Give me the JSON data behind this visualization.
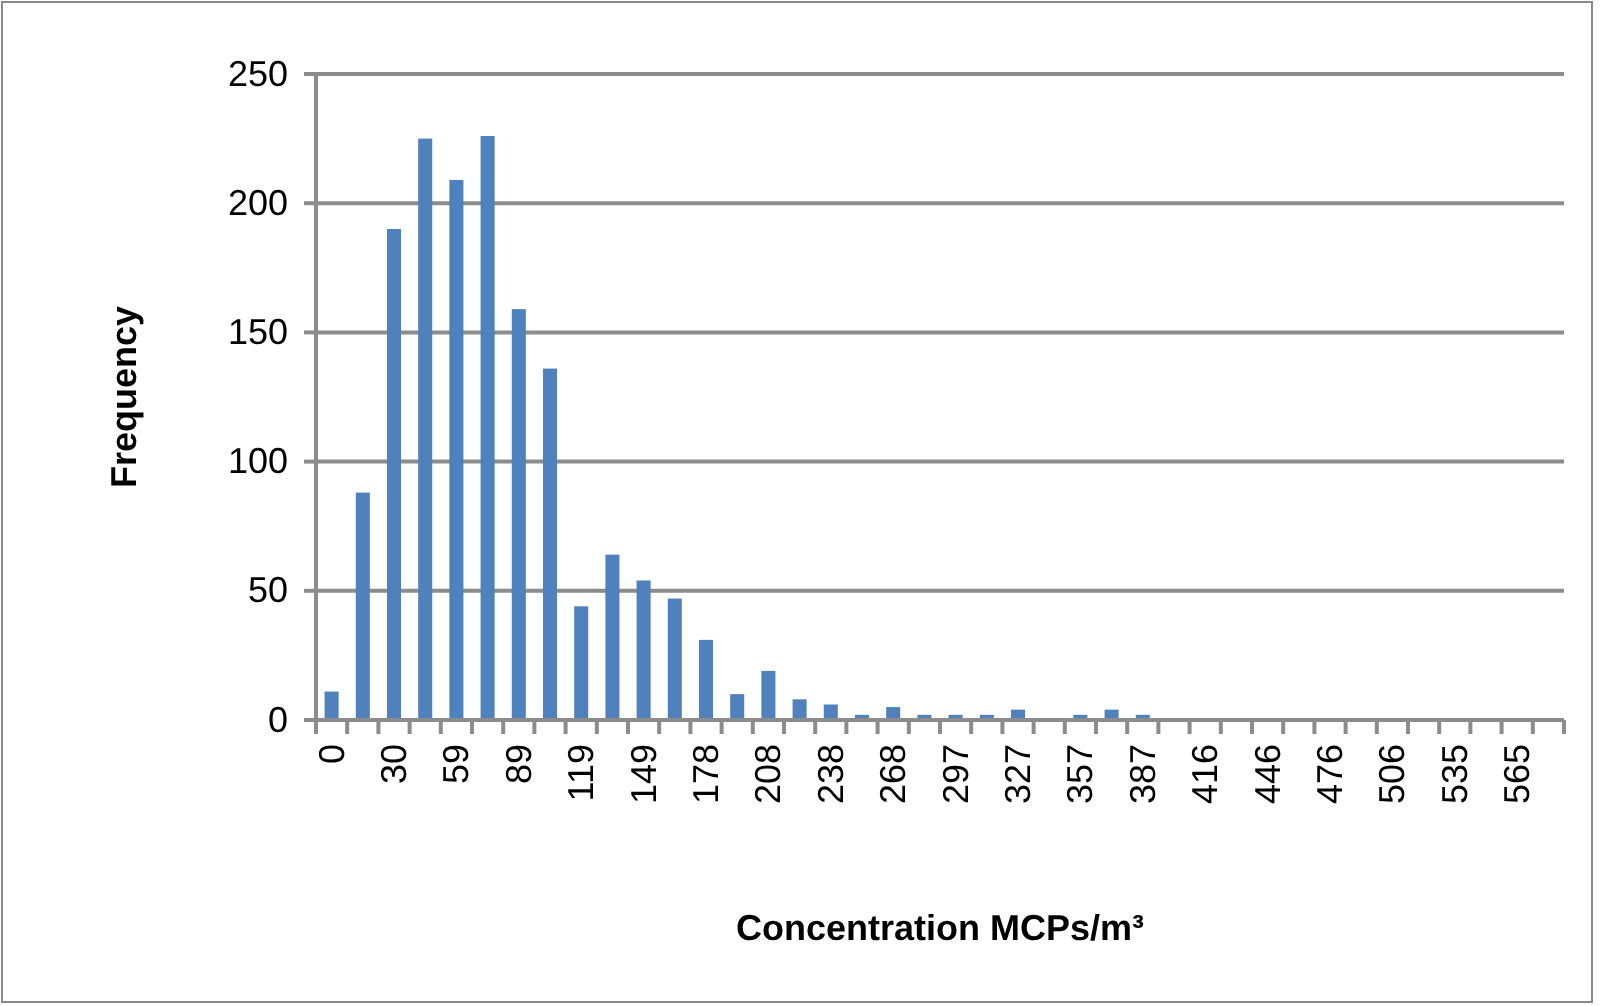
{
  "chart_data": {
    "type": "bar",
    "categories": [
      "0",
      null,
      "30",
      null,
      "59",
      null,
      "89",
      null,
      "119",
      null,
      "149",
      null,
      "178",
      null,
      "208",
      null,
      "238",
      null,
      "268",
      null,
      "297",
      null,
      "327",
      null,
      "357",
      null,
      "387",
      null,
      "416",
      null,
      "446",
      null,
      "476",
      null,
      "506",
      null,
      "535",
      null,
      "565",
      null
    ],
    "values": [
      11,
      88,
      190,
      225,
      209,
      226,
      159,
      136,
      44,
      64,
      54,
      47,
      31,
      10,
      19,
      8,
      6,
      2,
      5,
      2,
      2,
      2,
      4,
      0,
      2,
      4,
      2,
      0,
      0,
      0,
      0,
      0,
      0,
      0,
      0,
      0,
      0,
      0,
      0,
      0
    ],
    "color": "#4f81bd",
    "xlabel": "Concentration MCPs/m³",
    "ylabel": "Frequency",
    "ylim": [
      0,
      250
    ],
    "yticks": [
      0,
      50,
      100,
      150,
      200,
      250
    ],
    "grid": "y"
  }
}
